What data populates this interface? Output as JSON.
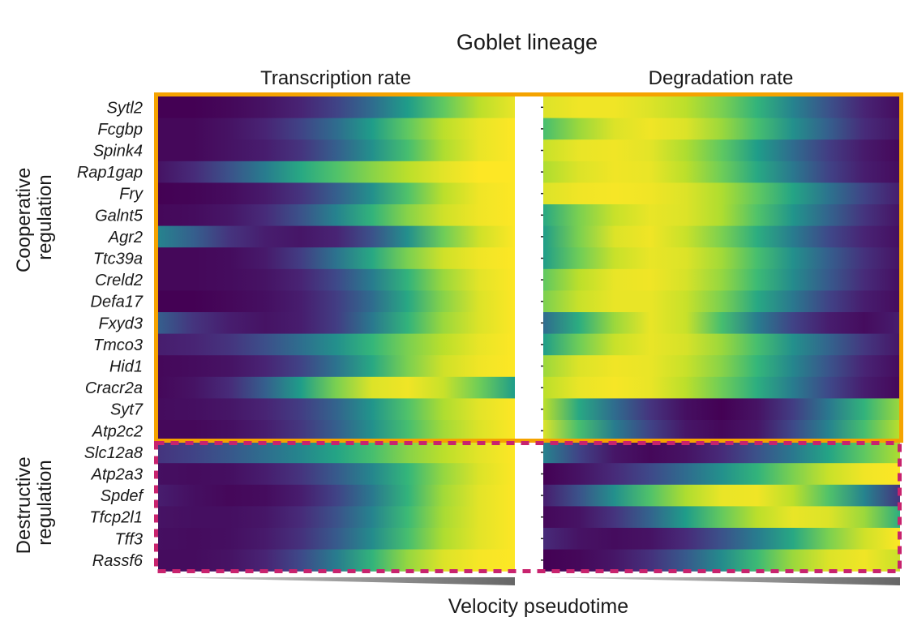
{
  "chart_data": {
    "type": "heatmap",
    "title": "Goblet lineage",
    "xlabel": "Velocity pseudotime",
    "panels": [
      {
        "name": "Transcription rate"
      },
      {
        "name": "Degradation rate"
      }
    ],
    "groups": [
      {
        "label": "Cooperative regulation",
        "color": "#f5a300",
        "genes": [
          "Sytl2",
          "Fcgbp",
          "Spink4",
          "Rap1gap",
          "Fry",
          "Galnt5",
          "Agr2",
          "Ttc39a",
          "Creld2",
          "Defa17",
          "Fxyd3",
          "Tmco3",
          "Hid1",
          "Cracr2a",
          "Syt7",
          "Atp2c2"
        ]
      },
      {
        "label": "Destructive regulation",
        "color": "#c8236e",
        "genes": [
          "Slc12a8",
          "Atp2a3",
          "Spdef",
          "Tfcp2l1",
          "Tff3",
          "Rassf6"
        ]
      }
    ],
    "colormap": "viridis",
    "value_range": [
      0,
      1
    ],
    "pseudotime_bins": 11,
    "rows": [
      {
        "gene": "Sytl2",
        "transcription": [
          0.0,
          0.0,
          0.02,
          0.05,
          0.1,
          0.2,
          0.35,
          0.55,
          0.75,
          0.9,
          0.97
        ],
        "degradation": [
          0.95,
          0.98,
          0.98,
          0.95,
          0.9,
          0.8,
          0.65,
          0.45,
          0.25,
          0.1,
          0.03
        ]
      },
      {
        "gene": "Fcgbp",
        "transcription": [
          0.02,
          0.02,
          0.05,
          0.1,
          0.2,
          0.35,
          0.55,
          0.75,
          0.9,
          0.97,
          1.0
        ],
        "degradation": [
          0.7,
          0.85,
          0.95,
          0.98,
          0.95,
          0.85,
          0.7,
          0.5,
          0.3,
          0.12,
          0.05
        ]
      },
      {
        "gene": "Spink4",
        "transcription": [
          0.02,
          0.02,
          0.05,
          0.08,
          0.15,
          0.3,
          0.5,
          0.7,
          0.88,
          0.97,
          1.0
        ],
        "degradation": [
          0.92,
          0.97,
          0.98,
          0.96,
          0.88,
          0.75,
          0.55,
          0.35,
          0.18,
          0.07,
          0.02
        ]
      },
      {
        "gene": "Rap1gap",
        "transcription": [
          0.05,
          0.12,
          0.25,
          0.42,
          0.6,
          0.72,
          0.82,
          0.9,
          0.96,
          1.0,
          1.0
        ],
        "degradation": [
          0.88,
          0.95,
          0.98,
          0.97,
          0.9,
          0.78,
          0.6,
          0.4,
          0.2,
          0.08,
          0.03
        ]
      },
      {
        "gene": "Fry",
        "transcription": [
          0.0,
          0.01,
          0.03,
          0.07,
          0.15,
          0.3,
          0.5,
          0.72,
          0.9,
          0.98,
          1.0
        ],
        "degradation": [
          0.95,
          0.98,
          0.99,
          0.98,
          0.95,
          0.88,
          0.75,
          0.58,
          0.38,
          0.2,
          0.08
        ]
      },
      {
        "gene": "Galnt5",
        "transcription": [
          0.02,
          0.03,
          0.06,
          0.12,
          0.25,
          0.45,
          0.65,
          0.82,
          0.93,
          0.98,
          1.0
        ],
        "degradation": [
          0.6,
          0.8,
          0.92,
          0.97,
          0.95,
          0.88,
          0.72,
          0.52,
          0.32,
          0.15,
          0.05
        ]
      },
      {
        "gene": "Agr2",
        "transcription": [
          0.45,
          0.3,
          0.15,
          0.08,
          0.06,
          0.1,
          0.25,
          0.5,
          0.78,
          0.93,
          1.0
        ],
        "degradation": [
          0.55,
          0.8,
          0.95,
          0.98,
          0.92,
          0.8,
          0.62,
          0.42,
          0.22,
          0.1,
          0.04
        ]
      },
      {
        "gene": "Ttc39a",
        "transcription": [
          0.02,
          0.02,
          0.03,
          0.07,
          0.18,
          0.38,
          0.6,
          0.8,
          0.93,
          0.98,
          1.0
        ],
        "degradation": [
          0.55,
          0.78,
          0.92,
          0.97,
          0.95,
          0.86,
          0.7,
          0.5,
          0.3,
          0.14,
          0.05
        ]
      },
      {
        "gene": "Creld2",
        "transcription": [
          0.02,
          0.02,
          0.03,
          0.05,
          0.1,
          0.22,
          0.42,
          0.65,
          0.85,
          0.96,
          1.0
        ],
        "degradation": [
          0.75,
          0.9,
          0.97,
          0.98,
          0.94,
          0.84,
          0.68,
          0.48,
          0.28,
          0.12,
          0.04
        ]
      },
      {
        "gene": "Defa17",
        "transcription": [
          0.0,
          0.0,
          0.02,
          0.04,
          0.08,
          0.18,
          0.35,
          0.6,
          0.82,
          0.95,
          1.0
        ],
        "degradation": [
          0.8,
          0.92,
          0.97,
          0.97,
          0.92,
          0.8,
          0.6,
          0.4,
          0.2,
          0.08,
          0.03
        ]
      },
      {
        "gene": "Fxyd3",
        "transcription": [
          0.3,
          0.15,
          0.08,
          0.05,
          0.08,
          0.18,
          0.4,
          0.65,
          0.85,
          0.95,
          1.0
        ],
        "degradation": [
          0.35,
          0.62,
          0.85,
          0.97,
          0.92,
          0.7,
          0.42,
          0.2,
          0.08,
          0.03,
          0.08
        ]
      },
      {
        "gene": "Tmco3",
        "transcription": [
          0.08,
          0.1,
          0.15,
          0.24,
          0.36,
          0.5,
          0.66,
          0.8,
          0.9,
          0.97,
          1.0
        ],
        "degradation": [
          0.55,
          0.78,
          0.92,
          0.97,
          0.94,
          0.85,
          0.7,
          0.5,
          0.32,
          0.16,
          0.06
        ]
      },
      {
        "gene": "Hid1",
        "transcription": [
          0.02,
          0.03,
          0.05,
          0.1,
          0.2,
          0.38,
          0.6,
          0.8,
          0.93,
          0.98,
          1.0
        ],
        "degradation": [
          0.85,
          0.95,
          0.98,
          0.97,
          0.92,
          0.82,
          0.66,
          0.46,
          0.26,
          0.1,
          0.03
        ]
      },
      {
        "gene": "Cracr2a",
        "transcription": [
          0.02,
          0.05,
          0.12,
          0.3,
          0.55,
          0.8,
          0.95,
          0.98,
          0.92,
          0.78,
          0.55
        ],
        "degradation": [
          0.9,
          0.97,
          0.99,
          0.97,
          0.9,
          0.78,
          0.62,
          0.42,
          0.22,
          0.08,
          0.02
        ]
      },
      {
        "gene": "Syt7",
        "transcription": [
          0.03,
          0.04,
          0.06,
          0.1,
          0.18,
          0.32,
          0.52,
          0.72,
          0.88,
          0.96,
          1.0
        ],
        "degradation": [
          0.9,
          0.6,
          0.35,
          0.15,
          0.04,
          0.0,
          0.05,
          0.18,
          0.4,
          0.65,
          0.85
        ]
      },
      {
        "gene": "Atp2c2",
        "transcription": [
          0.02,
          0.02,
          0.04,
          0.08,
          0.16,
          0.3,
          0.5,
          0.7,
          0.86,
          0.95,
          1.0
        ],
        "degradation": [
          0.95,
          0.7,
          0.42,
          0.2,
          0.06,
          0.02,
          0.06,
          0.22,
          0.45,
          0.7,
          0.9
        ]
      },
      {
        "gene": "Slc12a8",
        "transcription": [
          0.15,
          0.2,
          0.27,
          0.36,
          0.46,
          0.58,
          0.7,
          0.82,
          0.9,
          0.96,
          1.0
        ],
        "degradation": [
          0.45,
          0.2,
          0.06,
          0.02,
          0.05,
          0.12,
          0.25,
          0.4,
          0.58,
          0.75,
          0.88
        ]
      },
      {
        "gene": "Atp2a3",
        "transcription": [
          0.04,
          0.03,
          0.04,
          0.08,
          0.15,
          0.28,
          0.46,
          0.66,
          0.84,
          0.95,
          1.0
        ],
        "degradation": [
          0.0,
          0.05,
          0.12,
          0.22,
          0.35,
          0.5,
          0.65,
          0.8,
          0.92,
          0.98,
          1.0
        ]
      },
      {
        "gene": "Spdef",
        "transcription": [
          0.08,
          0.04,
          0.02,
          0.03,
          0.08,
          0.2,
          0.4,
          0.65,
          0.86,
          0.96,
          1.0
        ],
        "degradation": [
          0.08,
          0.25,
          0.5,
          0.72,
          0.88,
          0.97,
          0.98,
          0.9,
          0.72,
          0.45,
          0.15
        ]
      },
      {
        "gene": "Tfcp2l1",
        "transcription": [
          0.05,
          0.04,
          0.04,
          0.06,
          0.12,
          0.25,
          0.45,
          0.68,
          0.87,
          0.96,
          1.0
        ],
        "degradation": [
          0.02,
          0.05,
          0.15,
          0.32,
          0.55,
          0.76,
          0.9,
          0.97,
          0.95,
          0.85,
          0.62
        ]
      },
      {
        "gene": "Tff3",
        "transcription": [
          0.04,
          0.03,
          0.04,
          0.07,
          0.14,
          0.28,
          0.48,
          0.7,
          0.88,
          0.96,
          1.0
        ],
        "degradation": [
          0.12,
          0.05,
          0.03,
          0.05,
          0.12,
          0.25,
          0.42,
          0.6,
          0.8,
          0.93,
          1.0
        ]
      },
      {
        "gene": "Rassf6",
        "transcription": [
          0.03,
          0.03,
          0.05,
          0.1,
          0.22,
          0.42,
          0.65,
          0.84,
          0.95,
          0.99,
          1.0
        ],
        "degradation": [
          0.0,
          0.02,
          0.06,
          0.14,
          0.28,
          0.48,
          0.68,
          0.85,
          0.95,
          0.98,
          0.92
        ]
      }
    ]
  }
}
